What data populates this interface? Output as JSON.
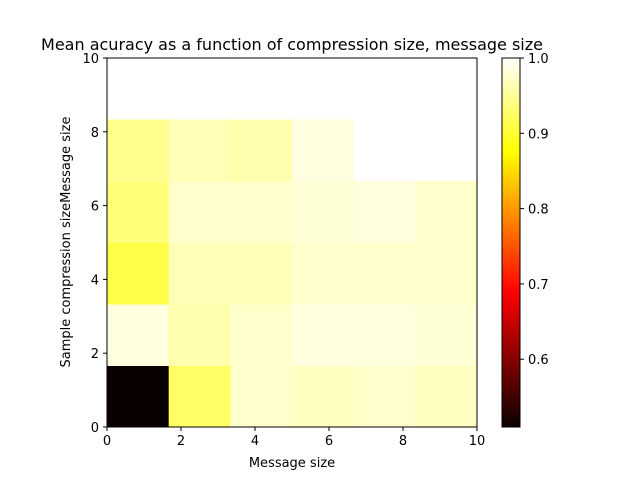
{
  "chart_data": {
    "type": "heatmap",
    "title": "Mean acuracy as a function of compression size, message size",
    "xlabel": "Message size",
    "ylabel": "Sample compression sizeMessage size",
    "xlim": [
      0,
      10
    ],
    "ylim": [
      0,
      10
    ],
    "x_ticks": [
      "0",
      "2",
      "4",
      "6",
      "8",
      "10"
    ],
    "y_ticks": [
      "0",
      "2",
      "4",
      "6",
      "8",
      "10"
    ],
    "colormap": "hot",
    "colorbar": {
      "range": [
        0.51,
        1.0
      ],
      "ticks": [
        "0.6",
        "0.7",
        "0.8",
        "0.9",
        "1.0"
      ],
      "tick_values": [
        0.6,
        0.7,
        0.8,
        0.9,
        1.0
      ]
    },
    "x_edges": [
      0,
      1.667,
      3.333,
      5.0,
      6.667,
      8.333,
      10.0
    ],
    "y_edges": [
      0,
      1.667,
      3.333,
      5.0,
      6.667,
      8.333,
      10.0
    ],
    "values": [
      [
        0.51,
        0.925,
        0.975,
        0.97,
        0.975,
        0.97
      ],
      [
        0.985,
        0.96,
        0.975,
        0.985,
        0.985,
        0.98
      ],
      [
        0.91,
        0.965,
        0.965,
        0.975,
        0.975,
        0.975
      ],
      [
        0.935,
        0.975,
        0.975,
        0.98,
        0.985,
        0.975
      ],
      [
        0.945,
        0.965,
        0.96,
        0.985,
        null,
        null
      ],
      [
        null,
        null,
        null,
        null,
        null,
        null
      ]
    ]
  }
}
